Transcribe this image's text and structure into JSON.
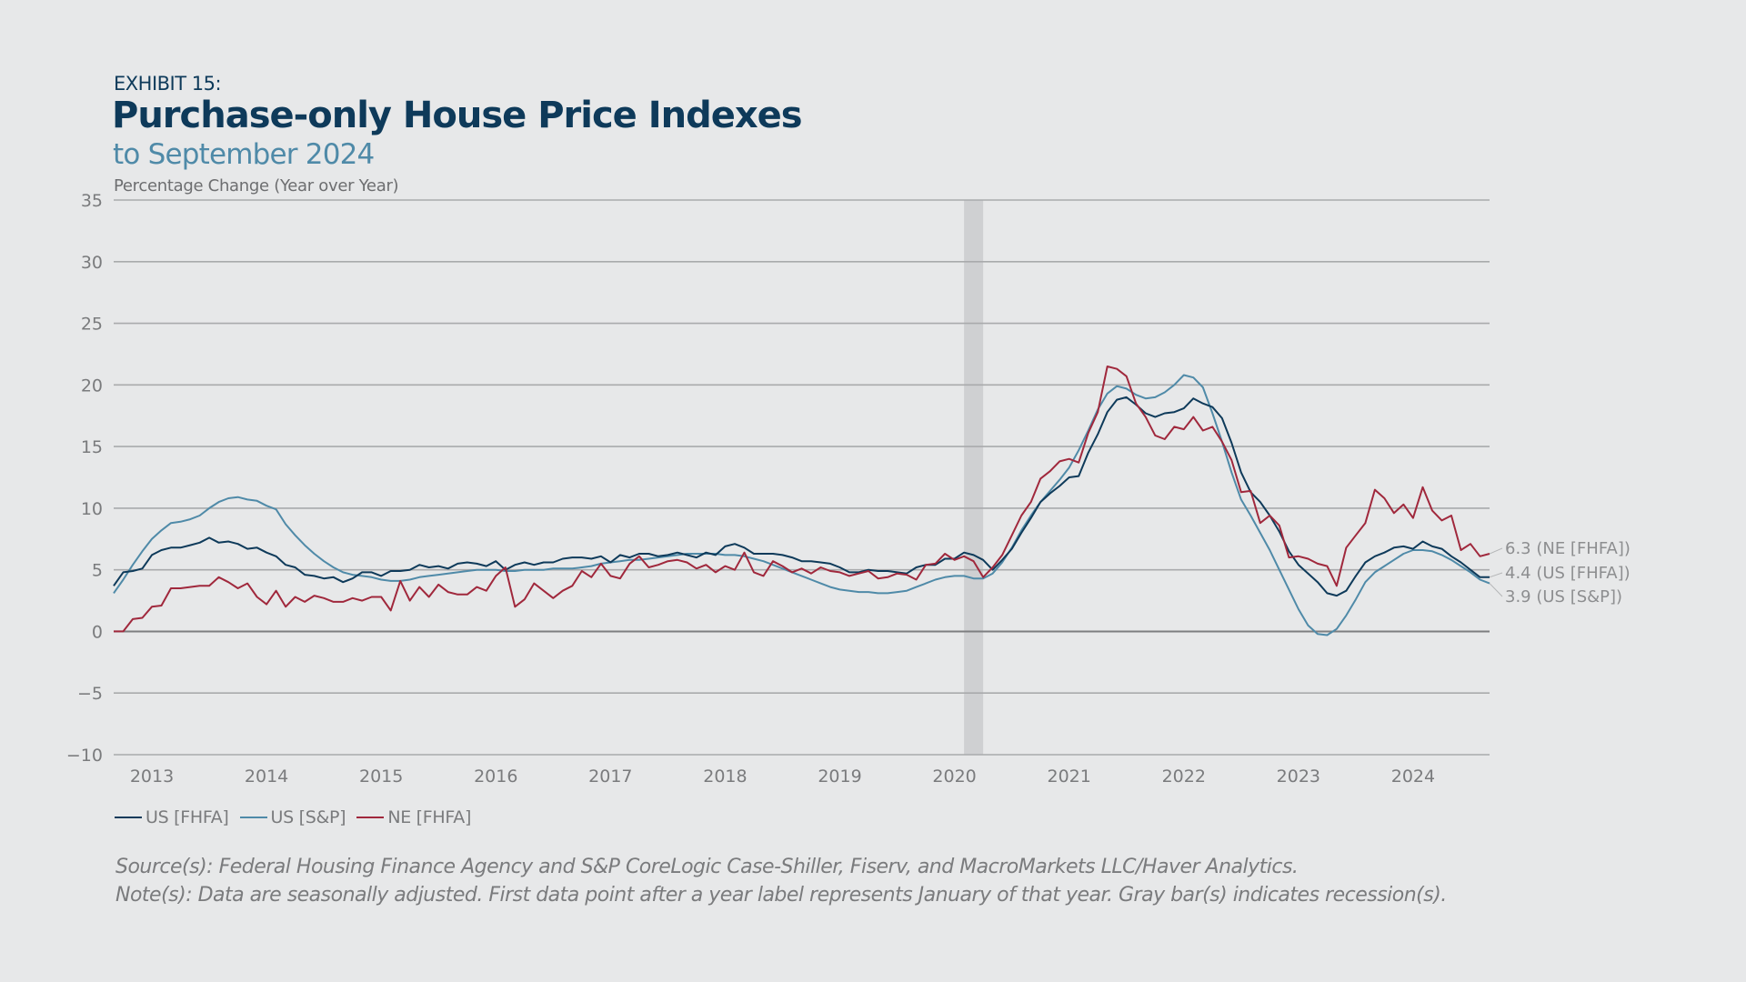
{
  "header": {
    "exhibit": "EXHIBIT 15:",
    "title": "Purchase-only House Price Indexes",
    "subtitle": "to September 2024",
    "yaxis_title": "Percentage Change (Year over Year)"
  },
  "colors": {
    "background": "#e7e8e9",
    "us_fhfa": "#0e3a5a",
    "us_sp": "#4f8aa8",
    "ne_fhfa": "#a0283c",
    "grid": "#a9aaac",
    "zero_line": "#7d7e80",
    "recession": "#cfd0d2"
  },
  "legend": [
    {
      "label": "US [FHFA]",
      "color": "#0e3a5a"
    },
    {
      "label": "US [S&P]",
      "color": "#4f8aa8"
    },
    {
      "label": "NE [FHFA]",
      "color": "#a0283c"
    }
  ],
  "notes": {
    "source": "Source(s): Federal Housing Finance Agency and S&P CoreLogic Case-Shiller, Fiserv, and MacroMarkets LLC/Haver Analytics.",
    "note": "Note(s): Data are seasonally adjusted. First data point after a year label represents January of that year. Gray bar(s) indicates recession(s)."
  },
  "chart_data": {
    "type": "line",
    "title": "Purchase-only House Price Indexes",
    "subtitle": "to September 2024",
    "xlabel": "",
    "ylabel": "Percentage Change (Year over Year)",
    "x_start": "2012-09",
    "x_end": "2024-09",
    "frequency": "monthly",
    "ylim": [
      -10,
      35
    ],
    "yticks": [
      35,
      30,
      25,
      20,
      15,
      10,
      5,
      0,
      -5,
      -10
    ],
    "ytick_labels": [
      "35",
      "30",
      "25",
      "20",
      "15",
      "10",
      "5",
      "0",
      "−5",
      "−10"
    ],
    "xtick_labels": [
      "2013",
      "2014",
      "2015",
      "2016",
      "2017",
      "2018",
      "2019",
      "2020",
      "2021",
      "2022",
      "2023",
      "2024"
    ],
    "grid": true,
    "legend_position": "bottom-left",
    "recessions": [
      {
        "start": "2020-02",
        "end": "2020-04"
      }
    ],
    "end_labels": [
      {
        "text": "6.3 (NE [FHFA])",
        "series": "NE [FHFA]",
        "value": 6.3
      },
      {
        "text": "4.4 (US [FHFA])",
        "series": "US [FHFA]",
        "value": 4.4
      },
      {
        "text": "3.9 (US [S&P])",
        "series": "US [S&P]",
        "value": 3.9
      }
    ],
    "series": [
      {
        "name": "US [FHFA]",
        "color": "#0e3a5a",
        "values": [
          3.7,
          4.8,
          4.9,
          5.1,
          6.2,
          6.6,
          6.8,
          6.8,
          7.0,
          7.2,
          7.6,
          7.2,
          7.3,
          7.1,
          6.7,
          6.8,
          6.4,
          6.1,
          5.4,
          5.2,
          4.6,
          4.5,
          4.3,
          4.4,
          4.0,
          4.3,
          4.8,
          4.8,
          4.5,
          4.9,
          4.9,
          5.0,
          5.4,
          5.2,
          5.3,
          5.1,
          5.5,
          5.6,
          5.5,
          5.3,
          5.7,
          5.0,
          5.4,
          5.6,
          5.4,
          5.6,
          5.6,
          5.9,
          6.0,
          6.0,
          5.9,
          6.1,
          5.6,
          6.2,
          6.0,
          6.3,
          6.3,
          6.1,
          6.2,
          6.4,
          6.2,
          6.0,
          6.4,
          6.2,
          6.9,
          7.1,
          6.8,
          6.3,
          6.3,
          6.3,
          6.2,
          6.0,
          5.7,
          5.7,
          5.6,
          5.5,
          5.2,
          4.8,
          4.8,
          5.0,
          4.9,
          4.9,
          4.8,
          4.7,
          5.2,
          5.4,
          5.4,
          5.9,
          5.9,
          6.4,
          6.2,
          5.8,
          5.0,
          5.8,
          6.7,
          8.0,
          9.2,
          10.5,
          11.2,
          11.8,
          12.5,
          12.6,
          14.5,
          16.0,
          17.8,
          18.8,
          19.0,
          18.4,
          17.7,
          17.4,
          17.7,
          17.8,
          18.1,
          18.9,
          18.5,
          18.2,
          17.3,
          15.3,
          12.9,
          11.3,
          10.5,
          9.4,
          8.1,
          6.5,
          5.4,
          4.7,
          4.0,
          3.1,
          2.9,
          3.3,
          4.5,
          5.6,
          6.1,
          6.4,
          6.8,
          6.9,
          6.7,
          7.3,
          6.9,
          6.7,
          6.1,
          5.6,
          5.0,
          4.4,
          4.4
        ]
      },
      {
        "name": "US [S&P]",
        "color": "#4f8aa8",
        "values": [
          3.1,
          4.2,
          5.4,
          6.5,
          7.5,
          8.2,
          8.8,
          8.9,
          9.1,
          9.4,
          10.0,
          10.5,
          10.8,
          10.9,
          10.7,
          10.6,
          10.2,
          9.9,
          8.7,
          7.8,
          7.0,
          6.3,
          5.7,
          5.2,
          4.8,
          4.6,
          4.5,
          4.4,
          4.2,
          4.1,
          4.1,
          4.2,
          4.4,
          4.5,
          4.6,
          4.7,
          4.8,
          4.9,
          5.0,
          5.0,
          5.0,
          4.9,
          4.9,
          5.0,
          5.0,
          5.0,
          5.1,
          5.1,
          5.1,
          5.2,
          5.3,
          5.5,
          5.6,
          5.7,
          5.8,
          5.8,
          5.9,
          6.0,
          6.1,
          6.2,
          6.3,
          6.3,
          6.3,
          6.3,
          6.2,
          6.2,
          6.1,
          5.9,
          5.7,
          5.4,
          5.1,
          4.8,
          4.5,
          4.2,
          3.9,
          3.6,
          3.4,
          3.3,
          3.2,
          3.2,
          3.1,
          3.1,
          3.2,
          3.3,
          3.6,
          3.9,
          4.2,
          4.4,
          4.5,
          4.5,
          4.3,
          4.3,
          4.7,
          5.6,
          6.8,
          8.2,
          9.4,
          10.5,
          11.4,
          12.3,
          13.3,
          14.7,
          16.3,
          18.0,
          19.3,
          19.9,
          19.7,
          19.2,
          18.9,
          19.0,
          19.4,
          20.0,
          20.8,
          20.6,
          19.8,
          17.7,
          15.4,
          12.9,
          10.7,
          9.4,
          8.0,
          6.6,
          5.0,
          3.4,
          1.8,
          0.5,
          -0.2,
          -0.3,
          0.2,
          1.3,
          2.6,
          4.0,
          4.8,
          5.3,
          5.8,
          6.3,
          6.6,
          6.6,
          6.5,
          6.2,
          5.8,
          5.3,
          4.8,
          4.2,
          3.9
        ]
      },
      {
        "name": "NE [FHFA]",
        "color": "#a0283c",
        "values": [
          0.0,
          0.0,
          1.0,
          1.1,
          2.0,
          2.1,
          3.5,
          3.5,
          3.6,
          3.7,
          3.7,
          4.4,
          4.0,
          3.5,
          3.9,
          2.8,
          2.2,
          3.3,
          2.0,
          2.8,
          2.4,
          2.9,
          2.7,
          2.4,
          2.4,
          2.7,
          2.5,
          2.8,
          2.8,
          1.7,
          4.1,
          2.5,
          3.6,
          2.8,
          3.8,
          3.2,
          3.0,
          3.0,
          3.6,
          3.3,
          4.5,
          5.2,
          2.0,
          2.6,
          3.9,
          3.3,
          2.7,
          3.3,
          3.7,
          4.9,
          4.4,
          5.5,
          4.5,
          4.3,
          5.5,
          6.1,
          5.2,
          5.4,
          5.7,
          5.8,
          5.6,
          5.1,
          5.4,
          4.8,
          5.3,
          5.0,
          6.4,
          4.8,
          4.5,
          5.7,
          5.3,
          4.8,
          5.1,
          4.7,
          5.2,
          4.9,
          4.8,
          4.5,
          4.7,
          4.9,
          4.3,
          4.4,
          4.7,
          4.6,
          4.2,
          5.4,
          5.5,
          6.3,
          5.8,
          6.1,
          5.7,
          4.4,
          5.2,
          6.2,
          7.8,
          9.4,
          10.5,
          12.4,
          13.0,
          13.8,
          14.0,
          13.7,
          16.1,
          17.8,
          21.5,
          21.3,
          20.7,
          18.5,
          17.4,
          15.9,
          15.6,
          16.6,
          16.4,
          17.4,
          16.3,
          16.6,
          15.4,
          13.9,
          11.3,
          11.4,
          8.8,
          9.4,
          8.6,
          6.0,
          6.1,
          5.9,
          5.5,
          5.3,
          3.7,
          6.8,
          7.8,
          8.8,
          11.5,
          10.8,
          9.6,
          10.3,
          9.2,
          11.7,
          9.8,
          9.0,
          9.4,
          6.6,
          7.1,
          6.1,
          6.3
        ]
      }
    ]
  }
}
